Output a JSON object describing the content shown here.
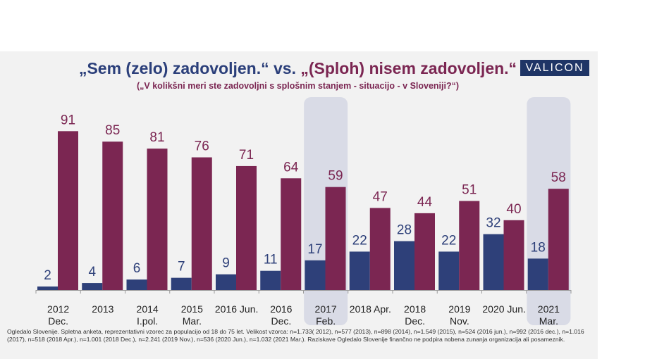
{
  "brand": "VALICON",
  "colors": {
    "blue": "#2e4079",
    "maroon": "#7b2652",
    "highlight": "#d9dbe6",
    "panel": "#f2f2f2"
  },
  "footer": "Ogledalo Slovenije. Spletna anketa, reprezentativni vzorec za populacijo od 18 do 75 let. Velikost vzorca: n=1.733( 2012), n=577 (2013), n=898 (2014), n=1.549 (2015), n=524 (2016 jun.), n=992 (2016 dec.), n=1.016 (2017), n=518 (2018 Apr.), n=1.001 (2018 Dec.), n=2.241 (2019 Nov.), n=536 (2020 Jun.), n=1.032 (2021 Mar.). Raziskave Ogledalo Slovenije finančno ne podpira nobena zunanja organizacija ali posameznik.",
  "chart_data": {
    "type": "bar",
    "title_part1": "„Sem (zelo) zadovoljen.“",
    "title_vs": " vs. ",
    "title_part2": "„(Sploh) nisem zadovoljen.“",
    "subtitle": "(„V kolikšni meri ste zadovoljni s splošnim stanjem - situacijo - v Sloveniji?“)",
    "categories": [
      [
        "2012",
        "Dec."
      ],
      [
        "2013",
        ""
      ],
      [
        "2014",
        "I.pol."
      ],
      [
        "2015",
        "Mar."
      ],
      [
        "2016 Jun.",
        ""
      ],
      [
        "2016",
        "Dec."
      ],
      [
        "2017",
        "Feb."
      ],
      [
        "2018 Apr.",
        ""
      ],
      [
        "2018",
        "Dec."
      ],
      [
        "2019",
        "Nov."
      ],
      [
        "2020 Jun.",
        ""
      ],
      [
        "2021",
        "Mar."
      ]
    ],
    "highlighted": [
      6,
      11
    ],
    "series": [
      {
        "values": [
          2,
          4,
          6,
          7,
          9,
          11,
          17,
          22,
          28,
          22,
          32,
          18
        ],
        "color": "#2e4079"
      },
      {
        "values": [
          91,
          85,
          81,
          76,
          71,
          64,
          59,
          47,
          44,
          51,
          40,
          58
        ],
        "color": "#7b2652"
      }
    ],
    "ylim": [
      0,
      100
    ]
  }
}
